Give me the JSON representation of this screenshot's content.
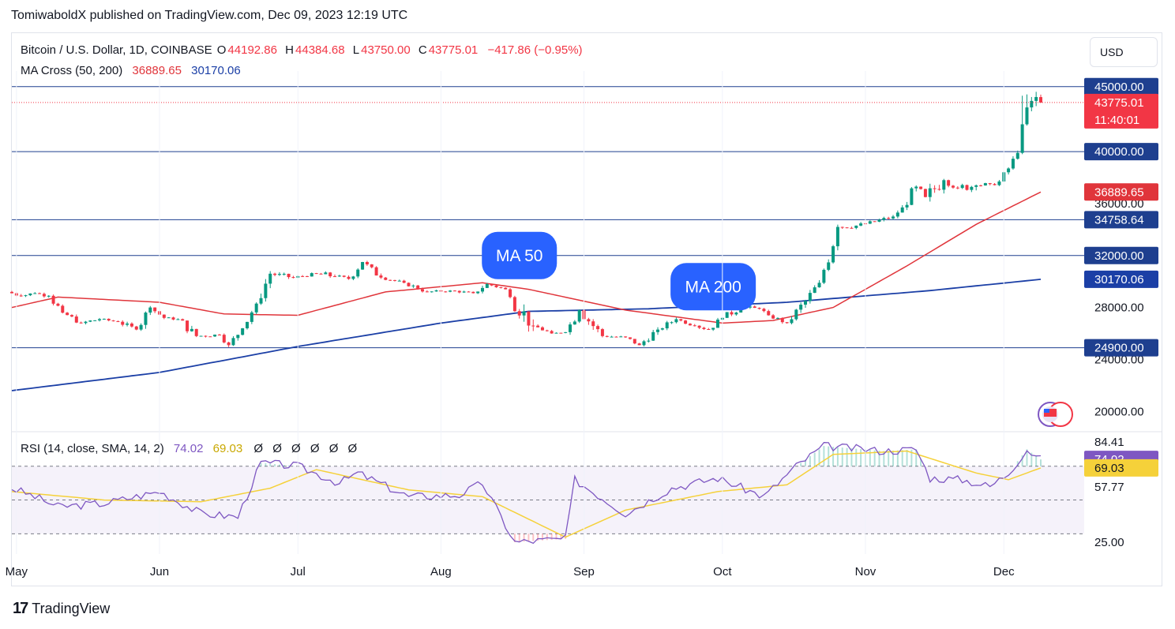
{
  "header": {
    "published": "TomiwaboldX published on TradingView.com, Dec 09, 2023 12:19 UTC"
  },
  "legend": {
    "symbol": "Bitcoin / U.S. Dollar, 1D, COINBASE",
    "o_label": "O",
    "o_value": "44192.86",
    "h_label": "H",
    "h_value": "44384.68",
    "l_label": "L",
    "l_value": "43750.00",
    "c_label": "C",
    "c_value": "43775.01",
    "change": "−417.86 (−0.95%)",
    "ma_label": "MA Cross (50, 200)",
    "ma50_value": "36889.65",
    "ma200_value": "30170.06",
    "rsi_label": "RSI (14, close, SMA, 14, 2)",
    "rsi_value": "74.02",
    "rsi_sma_value": "69.03",
    "rsi_extras": "Ø Ø Ø Ø Ø Ø"
  },
  "currency_button": "USD",
  "brand": "TradingView",
  "colors": {
    "up": "#089981",
    "down": "#f23645",
    "ma50": "#e0353b",
    "ma200": "#1b3fa6",
    "hline": "#1e3f8f",
    "rsi": "#7e57c2",
    "rsi_sma": "#f5d13a",
    "badge_blue": "#2962ff"
  },
  "chart_data": [
    {
      "type": "candlestick",
      "title": "Bitcoin / U.S. Dollar, 1D, COINBASE",
      "x_ticks": [
        "May",
        "Jun",
        "Jul",
        "Aug",
        "Sep",
        "Oct",
        "Nov",
        "Dec"
      ],
      "x_tick_dates": [
        "2023-05-01",
        "2023-06-01",
        "2023-07-01",
        "2023-08-01",
        "2023-09-01",
        "2023-10-01",
        "2023-11-01",
        "2023-12-01"
      ],
      "x_range": [
        "2023-04-30",
        "2023-12-09"
      ],
      "y_axis_ticks": [
        "20000.00",
        "24000.00",
        "28000.00",
        "36000.00"
      ],
      "ylim": [
        18500,
        46200
      ],
      "horizontal_lines": [
        {
          "value": 45000,
          "label": "45000.00"
        },
        {
          "value": 40000,
          "label": "40000.00"
        },
        {
          "value": 34758.64,
          "label": "34758.64"
        },
        {
          "value": 32000,
          "label": "32000.00"
        },
        {
          "value": 24900,
          "label": "24900.00"
        }
      ],
      "price_labels": [
        {
          "value": 43775.01,
          "label": "43775.01",
          "sublabel": "11:40:01",
          "color": "#f23645"
        },
        {
          "value": 36889.65,
          "label": "36889.65",
          "color": "#e0353b"
        },
        {
          "value": 30170.06,
          "label": "30170.06",
          "color": "#1b3fa6"
        }
      ],
      "annotations": [
        {
          "text": "MA 50",
          "date": "2023-08-18",
          "value": 32000
        },
        {
          "text": "MA 200",
          "date": "2023-09-29",
          "value": 29600
        }
      ],
      "ohlc_anchors": [
        [
          "2023-04-30",
          29200,
          29600,
          28700,
          28900
        ],
        [
          "2023-05-03",
          28900,
          29300,
          28500,
          29100
        ],
        [
          "2023-05-06",
          29100,
          29400,
          28700,
          28900
        ],
        [
          "2023-05-09",
          28900,
          29000,
          27400,
          27600
        ],
        [
          "2023-05-12",
          27600,
          27800,
          26700,
          26800
        ],
        [
          "2023-05-16",
          26800,
          27300,
          26400,
          27100
        ],
        [
          "2023-05-20",
          27100,
          27300,
          26800,
          26900
        ],
        [
          "2023-05-24",
          26900,
          27100,
          26100,
          26300
        ],
        [
          "2023-05-28",
          26300,
          28300,
          26200,
          28000
        ],
        [
          "2023-05-31",
          28000,
          28100,
          27100,
          27200
        ],
        [
          "2023-06-03",
          27200,
          27300,
          26800,
          27100
        ],
        [
          "2023-06-06",
          27100,
          27300,
          25400,
          25800
        ],
        [
          "2023-06-10",
          25800,
          26100,
          25400,
          25900
        ],
        [
          "2023-06-15",
          25900,
          26000,
          24900,
          25100
        ],
        [
          "2023-06-17",
          25100,
          26500,
          25000,
          26400
        ],
        [
          "2023-06-20",
          26400,
          28400,
          26300,
          28300
        ],
        [
          "2023-06-23",
          28300,
          30800,
          28200,
          30600
        ],
        [
          "2023-06-26",
          30600,
          31100,
          30100,
          30300
        ],
        [
          "2023-07-01",
          30300,
          30700,
          30100,
          30600
        ],
        [
          "2023-07-06",
          30600,
          31400,
          30200,
          30400
        ],
        [
          "2023-07-10",
          30400,
          30800,
          30000,
          30200
        ],
        [
          "2023-07-13",
          30200,
          31800,
          30100,
          31500
        ],
        [
          "2023-07-16",
          31500,
          31600,
          30200,
          30300
        ],
        [
          "2023-07-20",
          30300,
          30400,
          29800,
          29900
        ],
        [
          "2023-07-25",
          29900,
          30000,
          29100,
          29200
        ],
        [
          "2023-07-30",
          29200,
          29500,
          29000,
          29300
        ],
        [
          "2023-08-04",
          29300,
          29400,
          28900,
          29100
        ],
        [
          "2023-08-09",
          29100,
          30200,
          29000,
          29800
        ],
        [
          "2023-08-12",
          29800,
          29900,
          29300,
          29400
        ],
        [
          "2023-08-16",
          29400,
          29500,
          28700,
          28800
        ],
        [
          "2023-08-17",
          28800,
          28900,
          25200,
          26600
        ],
        [
          "2023-08-22",
          26600,
          26700,
          25800,
          26000
        ],
        [
          "2023-08-26",
          26000,
          26200,
          25900,
          26100
        ],
        [
          "2023-08-29",
          26100,
          28100,
          25900,
          27800
        ],
        [
          "2023-09-01",
          27800,
          27900,
          25700,
          25800
        ],
        [
          "2023-09-06",
          25800,
          26000,
          25500,
          25700
        ],
        [
          "2023-09-11",
          25700,
          25800,
          24900,
          25100
        ],
        [
          "2023-09-14",
          25100,
          26500,
          25000,
          26300
        ],
        [
          "2023-09-18",
          26300,
          27300,
          26200,
          27100
        ],
        [
          "2023-09-22",
          27100,
          27200,
          26500,
          26600
        ],
        [
          "2023-09-26",
          26600,
          26800,
          26100,
          26300
        ],
        [
          "2023-09-29",
          26300,
          27500,
          26200,
          27200
        ],
        [
          "2023-10-02",
          27200,
          28500,
          27100,
          28000
        ],
        [
          "2023-10-06",
          28000,
          28300,
          27500,
          27900
        ],
        [
          "2023-10-10",
          27900,
          28000,
          27200,
          27400
        ],
        [
          "2023-10-12",
          27400,
          27500,
          26600,
          26800
        ],
        [
          "2023-10-16",
          26800,
          28700,
          26700,
          28500
        ],
        [
          "2023-10-20",
          28500,
          30100,
          28300,
          29900
        ],
        [
          "2023-10-23",
          29900,
          31000,
          29800,
          30900
        ],
        [
          "2023-10-24",
          30900,
          35100,
          30800,
          34200
        ],
        [
          "2023-10-27",
          34200,
          34700,
          33600,
          34300
        ],
        [
          "2023-10-31",
          34300,
          34800,
          34000,
          34600
        ],
        [
          "2023-11-04",
          34600,
          35300,
          34400,
          35000
        ],
        [
          "2023-11-08",
          35000,
          35900,
          34700,
          35700
        ],
        [
          "2023-11-10",
          35700,
          37900,
          35500,
          37300
        ],
        [
          "2023-11-13",
          37300,
          37500,
          36000,
          36500
        ],
        [
          "2023-11-15",
          36500,
          37900,
          35000,
          37800
        ],
        [
          "2023-11-19",
          37800,
          37900,
          36600,
          37200
        ],
        [
          "2023-11-22",
          37200,
          37700,
          35800,
          37400
        ],
        [
          "2023-11-26",
          37400,
          37800,
          37000,
          37500
        ],
        [
          "2023-11-29",
          37500,
          38200,
          37000,
          37700
        ],
        [
          "2023-12-01",
          37700,
          39000,
          37600,
          38700
        ],
        [
          "2023-12-03",
          38700,
          40200,
          38600,
          39900
        ],
        [
          "2023-12-05",
          39900,
          44300,
          39800,
          42100
        ],
        [
          "2023-12-06",
          42100,
          44400,
          42000,
          43400
        ],
        [
          "2023-12-07",
          43400,
          44200,
          43100,
          43900
        ],
        [
          "2023-12-08",
          43900,
          44600,
          43500,
          44200
        ],
        [
          "2023-12-09",
          44192.86,
          44384.68,
          43750,
          43775.01
        ]
      ],
      "ma50_anchors": [
        [
          "2023-04-30",
          28000
        ],
        [
          "2023-05-10",
          28800
        ],
        [
          "2023-06-01",
          28400
        ],
        [
          "2023-06-15",
          27500
        ],
        [
          "2023-07-01",
          27400
        ],
        [
          "2023-07-20",
          29200
        ],
        [
          "2023-08-10",
          29900
        ],
        [
          "2023-08-20",
          29400
        ],
        [
          "2023-09-10",
          27800
        ],
        [
          "2023-10-01",
          26800
        ],
        [
          "2023-10-12",
          27000
        ],
        [
          "2023-10-25",
          28000
        ],
        [
          "2023-11-10",
          31200
        ],
        [
          "2023-11-25",
          34400
        ],
        [
          "2023-12-09",
          36889.65
        ]
      ],
      "ma200_anchors": [
        [
          "2023-04-30",
          21600
        ],
        [
          "2023-06-01",
          23000
        ],
        [
          "2023-07-01",
          25000
        ],
        [
          "2023-08-01",
          26800
        ],
        [
          "2023-08-20",
          27700
        ],
        [
          "2023-09-15",
          27900
        ],
        [
          "2023-10-15",
          28400
        ],
        [
          "2023-11-15",
          29300
        ],
        [
          "2023-12-09",
          30170.06
        ]
      ]
    },
    {
      "type": "line",
      "title": "RSI (14, close, SMA, 14, 2)",
      "ylim": [
        18,
        90
      ],
      "y_axis_ticks": [
        "84.41",
        "57.77",
        "25.00"
      ],
      "bands": [
        70,
        50,
        30
      ],
      "series": [
        {
          "name": "RSI",
          "value_label": "74.02",
          "anchors": [
            [
              "2023-04-30",
              57
            ],
            [
              "2023-05-05",
              52
            ],
            [
              "2023-05-10",
              46
            ],
            [
              "2023-05-20",
              48
            ],
            [
              "2023-06-01",
              55
            ],
            [
              "2023-06-10",
              42
            ],
            [
              "2023-06-18",
              40
            ],
            [
              "2023-06-23",
              72
            ],
            [
              "2023-07-01",
              70
            ],
            [
              "2023-07-10",
              60
            ],
            [
              "2023-07-14",
              66
            ],
            [
              "2023-07-25",
              52
            ],
            [
              "2023-08-05",
              53
            ],
            [
              "2023-08-10",
              60
            ],
            [
              "2023-08-17",
              25
            ],
            [
              "2023-08-28",
              27
            ],
            [
              "2023-08-30",
              62
            ],
            [
              "2023-09-10",
              42
            ],
            [
              "2023-09-20",
              57
            ],
            [
              "2023-09-30",
              63
            ],
            [
              "2023-10-10",
              52
            ],
            [
              "2023-10-17",
              70
            ],
            [
              "2023-10-23",
              82
            ],
            [
              "2023-11-05",
              79
            ],
            [
              "2023-11-12",
              80
            ],
            [
              "2023-11-15",
              63
            ],
            [
              "2023-11-22",
              62
            ],
            [
              "2023-11-28",
              58
            ],
            [
              "2023-12-02",
              66
            ],
            [
              "2023-12-06",
              80
            ],
            [
              "2023-12-09",
              74.02
            ]
          ]
        },
        {
          "name": "RSI-based MA",
          "value_label": "69.03",
          "anchors": [
            [
              "2023-04-30",
              55
            ],
            [
              "2023-05-20",
              50
            ],
            [
              "2023-06-10",
              49
            ],
            [
              "2023-06-25",
              57
            ],
            [
              "2023-07-05",
              68
            ],
            [
              "2023-07-25",
              56
            ],
            [
              "2023-08-10",
              52
            ],
            [
              "2023-08-28",
              28
            ],
            [
              "2023-09-10",
              44
            ],
            [
              "2023-09-30",
              55
            ],
            [
              "2023-10-15",
              59
            ],
            [
              "2023-10-25",
              77
            ],
            [
              "2023-11-10",
              79
            ],
            [
              "2023-11-25",
              66
            ],
            [
              "2023-12-02",
              62
            ],
            [
              "2023-12-09",
              69.03
            ]
          ]
        }
      ]
    }
  ]
}
